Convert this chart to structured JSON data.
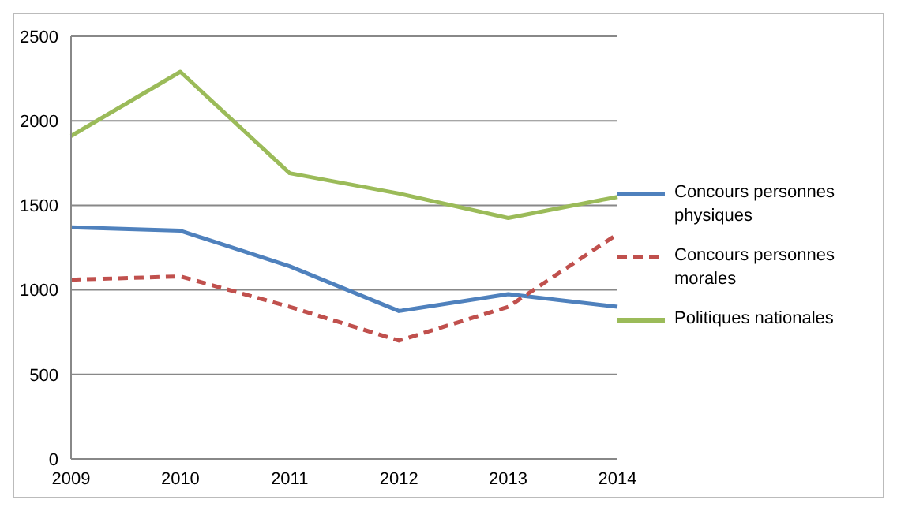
{
  "chart_data": {
    "type": "line",
    "categories": [
      "2009",
      "2010",
      "2011",
      "2012",
      "2013",
      "2014"
    ],
    "series": [
      {
        "name": "Concours personnes physiques",
        "color": "#4f81bd",
        "values": [
          1370,
          1350,
          1140,
          875,
          975,
          900
        ],
        "line_style": "solid"
      },
      {
        "name": "Concours personnes morales",
        "color": "#c0504d",
        "values": [
          1060,
          1080,
          900,
          700,
          900,
          1330
        ],
        "line_style": "dashed"
      },
      {
        "name": "Politiques nationales",
        "color": "#9bbb59",
        "values": [
          1910,
          2290,
          1690,
          1570,
          1425,
          1550
        ],
        "line_style": "solid"
      }
    ],
    "ylim": [
      0,
      2500
    ],
    "yticks": [
      0,
      500,
      1000,
      1500,
      2000,
      2500
    ],
    "grid": "y",
    "legend": "right",
    "marker": "none"
  }
}
